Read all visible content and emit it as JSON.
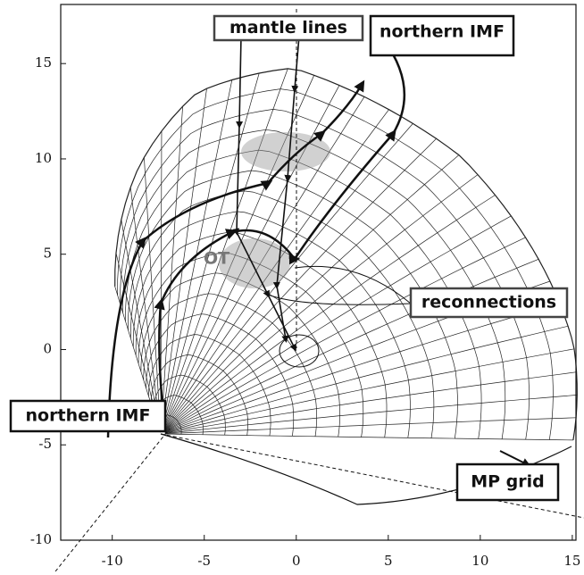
{
  "chart_data": {
    "type": "diagram",
    "xlim": [
      -12.8,
      15.2
    ],
    "ylim": [
      -10,
      18.1
    ],
    "xticks": [
      -10,
      -5,
      0,
      5,
      10,
      15
    ],
    "yticks": [
      -10,
      -5,
      0,
      5,
      10,
      15
    ],
    "annotations": [
      "mantle lines",
      "northern IMF",
      "reconnections",
      "northern IMF",
      "MP grid",
      "OT"
    ]
  }
}
